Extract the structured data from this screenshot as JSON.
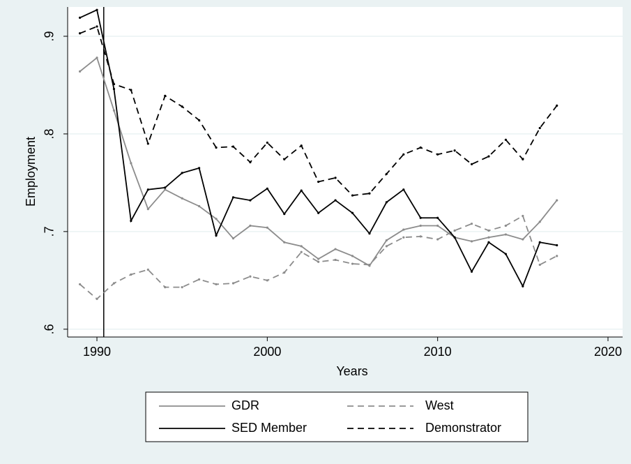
{
  "chart_data": {
    "type": "line",
    "x": [
      1989,
      1990,
      1991,
      1992,
      1993,
      1994,
      1995,
      1996,
      1997,
      1998,
      1999,
      2000,
      2001,
      2002,
      2003,
      2004,
      2005,
      2006,
      2007,
      2008,
      2009,
      2010,
      2011,
      2012,
      2013,
      2014,
      2015,
      2016,
      2017
    ],
    "series": [
      {
        "name": "GDR",
        "color": "#8c8c8c",
        "dashed": false,
        "values": [
          0.864,
          0.878,
          0.824,
          0.77,
          0.723,
          0.743,
          0.734,
          0.726,
          0.713,
          0.693,
          0.706,
          0.704,
          0.689,
          0.685,
          0.672,
          0.682,
          0.675,
          0.665,
          0.691,
          0.702,
          0.706,
          0.706,
          0.694,
          0.69,
          0.694,
          0.697,
          0.692,
          0.71,
          0.732
        ]
      },
      {
        "name": "West",
        "color": "#8c8c8c",
        "dashed": true,
        "values": [
          0.646,
          0.631,
          0.647,
          0.656,
          0.661,
          0.643,
          0.643,
          0.651,
          0.646,
          0.647,
          0.654,
          0.65,
          0.658,
          0.679,
          0.669,
          0.671,
          0.667,
          0.666,
          0.685,
          0.694,
          0.695,
          0.692,
          0.701,
          0.708,
          0.701,
          0.706,
          0.716,
          0.666,
          0.675
        ]
      },
      {
        "name": "SED Member",
        "color": "#000000",
        "dashed": false,
        "values": [
          0.919,
          0.927,
          0.846,
          0.711,
          0.743,
          0.745,
          0.76,
          0.765,
          0.696,
          0.735,
          0.732,
          0.744,
          0.718,
          0.742,
          0.719,
          0.732,
          0.719,
          0.698,
          0.73,
          0.743,
          0.714,
          0.714,
          0.694,
          0.659,
          0.689,
          0.677,
          0.644,
          0.689,
          0.686
        ]
      },
      {
        "name": "Demonstrator",
        "color": "#000000",
        "dashed": true,
        "values": [
          0.903,
          0.91,
          0.851,
          0.845,
          0.79,
          0.839,
          0.828,
          0.814,
          0.786,
          0.787,
          0.771,
          0.791,
          0.774,
          0.788,
          0.751,
          0.755,
          0.737,
          0.739,
          0.759,
          0.779,
          0.786,
          0.779,
          0.783,
          0.769,
          0.777,
          0.794,
          0.774,
          0.806,
          0.829
        ]
      }
    ],
    "xlabel": "Years",
    "ylabel": "Employment",
    "xlim": [
      1988.28,
      2020.86
    ],
    "xticks": [
      1990,
      2000,
      2010,
      2020
    ],
    "ylim": [
      0.592,
      0.93
    ],
    "yticks": [
      {
        "value": 0.6,
        "label": ".6"
      },
      {
        "value": 0.7,
        "label": ".7"
      },
      {
        "value": 0.8,
        "label": ".8"
      },
      {
        "value": 0.9,
        "label": ".9"
      }
    ],
    "xline": 1990.4,
    "grid": true,
    "legend": "bottom"
  }
}
